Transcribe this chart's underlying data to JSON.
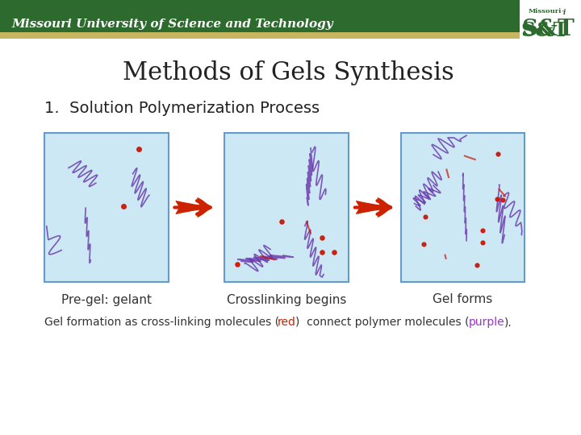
{
  "title": "Methods of Gels Synthesis",
  "subtitle": "1.  Solution Polymerization Process",
  "header_text": "Missouri University of Science and Technology",
  "caption_normal": "Gel formation as cross-linking molecules (",
  "caption_red": "red",
  "caption_middle": ")  connect polymer molecules (",
  "caption_purple": "purple",
  "caption_end": ").",
  "labels": [
    "Pre-gel: gelant",
    "Crosslinking begins",
    "Gel forms"
  ],
  "header_green": "#2d6a2d",
  "header_gold": "#c8b560",
  "title_color": "#222222",
  "subtitle_color": "#222222",
  "label_color": "#333333",
  "bg_color": "#ffffff",
  "box_bg": "#cce8f4",
  "box_border": "#6699cc",
  "arrow_color": "#cc2200",
  "caption_red_color": "#cc2200",
  "caption_purple_color": "#9933cc",
  "caption_text_color": "#333333"
}
